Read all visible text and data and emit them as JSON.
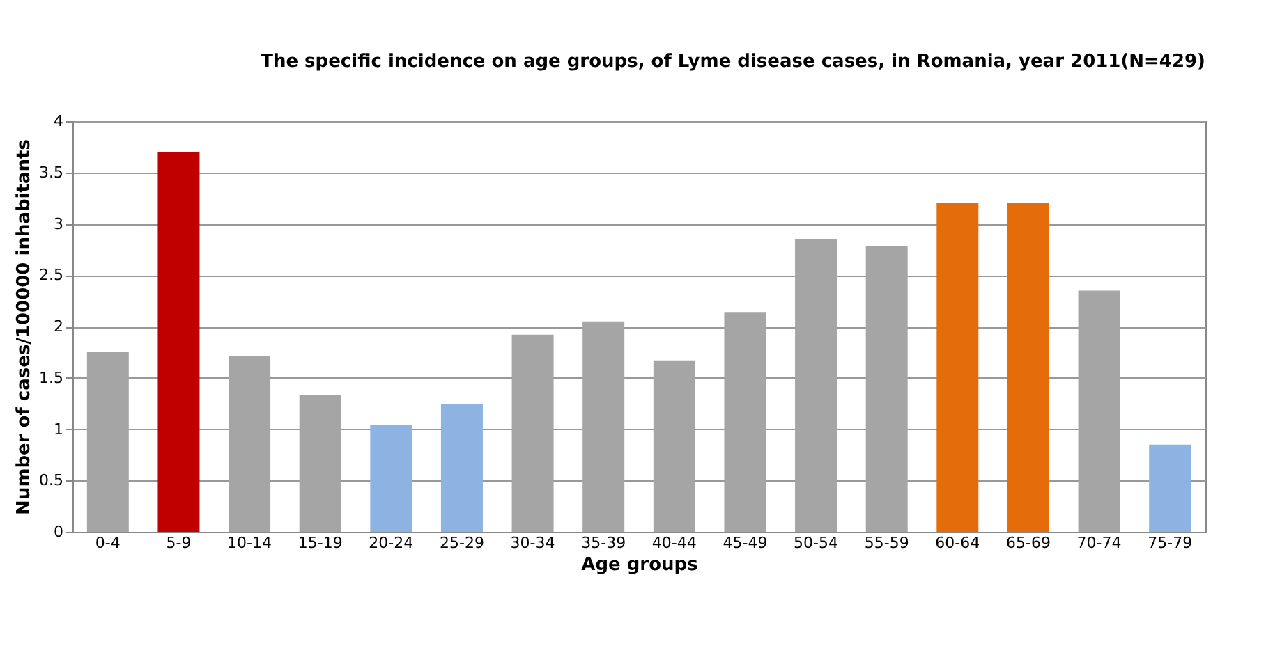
{
  "chart_data": {
    "type": "bar",
    "title": "The specific incidence on age groups, of Lyme disease cases, in Romania, year 2011(N=429)",
    "xlabel": "Age groups",
    "ylabel": "Number of cases/100000 inhabitants",
    "categories": [
      "0-4",
      "5-9",
      "10-14",
      "15-19",
      "20-24",
      "25-29",
      "30-34",
      "35-39",
      "40-44",
      "45-49",
      "50-54",
      "55-59",
      "60-64",
      "65-69",
      "70-74",
      "75-79"
    ],
    "values": [
      1.75,
      3.7,
      1.71,
      1.33,
      1.04,
      1.24,
      1.92,
      2.05,
      1.67,
      2.14,
      2.85,
      2.78,
      3.2,
      3.2,
      2.35,
      0.85
    ],
    "colors": [
      "#a5a5a5",
      "#c00000",
      "#a5a5a5",
      "#a5a5a5",
      "#8db3e2",
      "#8db3e2",
      "#a5a5a5",
      "#a5a5a5",
      "#a5a5a5",
      "#a5a5a5",
      "#a5a5a5",
      "#a5a5a5",
      "#e46c0a",
      "#e46c0a",
      "#a5a5a5",
      "#8db3e2"
    ],
    "ylim": [
      0,
      4
    ],
    "yticks": [
      0,
      0.5,
      1,
      1.5,
      2,
      2.5,
      3,
      3.5,
      4
    ],
    "grid": "y"
  }
}
